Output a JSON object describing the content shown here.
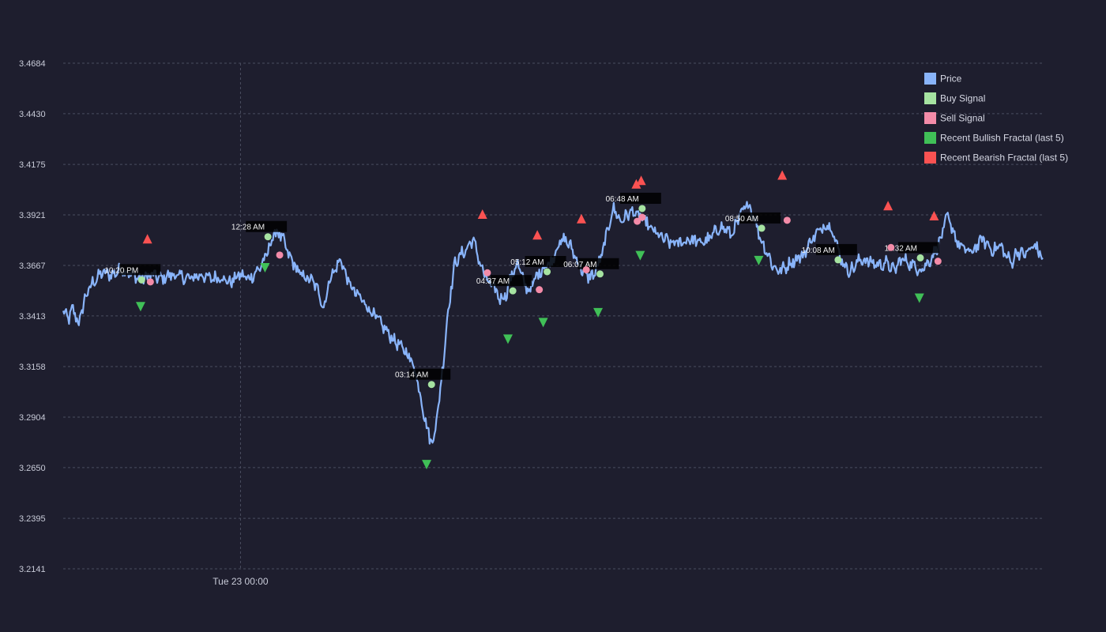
{
  "colors": {
    "background": "#1e1e2e",
    "price": "#89b4fa",
    "buy": "#a6e3a1",
    "sell": "#f38ba8",
    "bullish_fractal": "#40c057",
    "bearish_fractal": "#fa5252",
    "label_box": "#000000"
  },
  "chart_data": {
    "type": "line",
    "title": "",
    "xlabel": "",
    "ylabel": "",
    "ylim": [
      3.2141,
      3.4684
    ],
    "xlim": [
      0,
      1000
    ],
    "grid": true,
    "grid_style": "dashed",
    "legend_placement": "top-right",
    "y_ticks": [
      3.2141,
      3.2395,
      3.265,
      3.2904,
      3.3158,
      3.3413,
      3.3667,
      3.3921,
      3.4175,
      3.443,
      3.4684
    ],
    "y_tick_labels": [
      "3.2141",
      "3.2395",
      "3.2650",
      "3.2904",
      "3.3158",
      "3.3413",
      "3.3667",
      "3.3921",
      "3.4175",
      "3.4430",
      "3.4684"
    ],
    "x_ticks": [
      {
        "x": 181,
        "label": "Tue 23 00:00"
      }
    ],
    "price_anchors": [
      [
        0,
        3.343
      ],
      [
        6,
        3.34
      ],
      [
        10,
        3.345
      ],
      [
        16,
        3.337
      ],
      [
        22,
        3.35
      ],
      [
        30,
        3.358
      ],
      [
        40,
        3.363
      ],
      [
        50,
        3.362
      ],
      [
        60,
        3.365
      ],
      [
        70,
        3.362
      ],
      [
        80,
        3.36
      ],
      [
        90,
        3.362
      ],
      [
        100,
        3.36
      ],
      [
        110,
        3.362
      ],
      [
        120,
        3.361
      ],
      [
        130,
        3.36
      ],
      [
        140,
        3.362
      ],
      [
        150,
        3.36
      ],
      [
        160,
        3.361
      ],
      [
        170,
        3.358
      ],
      [
        180,
        3.362
      ],
      [
        190,
        3.36
      ],
      [
        200,
        3.365
      ],
      [
        208,
        3.372
      ],
      [
        213,
        3.38
      ],
      [
        218,
        3.384
      ],
      [
        224,
        3.38
      ],
      [
        230,
        3.372
      ],
      [
        236,
        3.367
      ],
      [
        242,
        3.362
      ],
      [
        250,
        3.36
      ],
      [
        256,
        3.358
      ],
      [
        262,
        3.352
      ],
      [
        266,
        3.345
      ],
      [
        272,
        3.36
      ],
      [
        278,
        3.365
      ],
      [
        284,
        3.37
      ],
      [
        288,
        3.362
      ],
      [
        296,
        3.354
      ],
      [
        304,
        3.35
      ],
      [
        312,
        3.345
      ],
      [
        320,
        3.34
      ],
      [
        328,
        3.335
      ],
      [
        336,
        3.33
      ],
      [
        344,
        3.326
      ],
      [
        352,
        3.322
      ],
      [
        358,
        3.316
      ],
      [
        362,
        3.308
      ],
      [
        366,
        3.298
      ],
      [
        370,
        3.288
      ],
      [
        374,
        3.28
      ],
      [
        377,
        3.278
      ],
      [
        380,
        3.285
      ],
      [
        384,
        3.3
      ],
      [
        388,
        3.318
      ],
      [
        392,
        3.34
      ],
      [
        396,
        3.355
      ],
      [
        400,
        3.368
      ],
      [
        406,
        3.372
      ],
      [
        412,
        3.375
      ],
      [
        418,
        3.38
      ],
      [
        422,
        3.374
      ],
      [
        428,
        3.364
      ],
      [
        434,
        3.358
      ],
      [
        440,
        3.355
      ],
      [
        446,
        3.35
      ],
      [
        452,
        3.352
      ],
      [
        458,
        3.362
      ],
      [
        464,
        3.368
      ],
      [
        470,
        3.358
      ],
      [
        476,
        3.354
      ],
      [
        482,
        3.36
      ],
      [
        490,
        3.366
      ],
      [
        498,
        3.368
      ],
      [
        504,
        3.376
      ],
      [
        512,
        3.38
      ],
      [
        518,
        3.376
      ],
      [
        524,
        3.37
      ],
      [
        530,
        3.364
      ],
      [
        536,
        3.361
      ],
      [
        542,
        3.362
      ],
      [
        550,
        3.372
      ],
      [
        556,
        3.385
      ],
      [
        562,
        3.396
      ],
      [
        568,
        3.389
      ],
      [
        574,
        3.391
      ],
      [
        580,
        3.394
      ],
      [
        586,
        3.392
      ],
      [
        592,
        3.39
      ],
      [
        600,
        3.385
      ],
      [
        610,
        3.381
      ],
      [
        620,
        3.378
      ],
      [
        630,
        3.378
      ],
      [
        640,
        3.38
      ],
      [
        650,
        3.378
      ],
      [
        660,
        3.38
      ],
      [
        670,
        3.386
      ],
      [
        676,
        3.385
      ],
      [
        682,
        3.382
      ],
      [
        688,
        3.388
      ],
      [
        694,
        3.394
      ],
      [
        700,
        3.398
      ],
      [
        706,
        3.39
      ],
      [
        712,
        3.38
      ],
      [
        718,
        3.374
      ],
      [
        724,
        3.367
      ],
      [
        730,
        3.364
      ],
      [
        736,
        3.365
      ],
      [
        742,
        3.368
      ],
      [
        748,
        3.37
      ],
      [
        756,
        3.372
      ],
      [
        764,
        3.38
      ],
      [
        772,
        3.384
      ],
      [
        780,
        3.388
      ],
      [
        786,
        3.384
      ],
      [
        790,
        3.376
      ],
      [
        796,
        3.368
      ],
      [
        802,
        3.364
      ],
      [
        808,
        3.366
      ],
      [
        814,
        3.37
      ],
      [
        820,
        3.369
      ],
      [
        826,
        3.368
      ],
      [
        832,
        3.367
      ],
      [
        840,
        3.368
      ],
      [
        848,
        3.364
      ],
      [
        856,
        3.37
      ],
      [
        864,
        3.368
      ],
      [
        872,
        3.365
      ],
      [
        880,
        3.366
      ],
      [
        888,
        3.372
      ],
      [
        896,
        3.38
      ],
      [
        902,
        3.391
      ],
      [
        908,
        3.385
      ],
      [
        914,
        3.377
      ],
      [
        920,
        3.375
      ],
      [
        926,
        3.373
      ],
      [
        932,
        3.376
      ],
      [
        938,
        3.38
      ],
      [
        944,
        3.377
      ],
      [
        950,
        3.374
      ],
      [
        956,
        3.377
      ],
      [
        962,
        3.372
      ],
      [
        968,
        3.368
      ],
      [
        974,
        3.374
      ],
      [
        980,
        3.372
      ],
      [
        986,
        3.374
      ],
      [
        992,
        3.377
      ],
      [
        1000,
        3.37
      ]
    ],
    "series": [
      {
        "name": "Price",
        "marker": "line"
      },
      {
        "name": "Buy Signal",
        "marker": "circle",
        "points": [
          {
            "x": 80,
            "y": 3.3594,
            "label": "10:20 PM"
          },
          {
            "x": 209,
            "y": 3.3811,
            "label": "12:28 AM"
          },
          {
            "x": 376,
            "y": 3.3068,
            "label": "03:14 AM"
          },
          {
            "x": 459,
            "y": 3.3539,
            "label": "04:37 AM"
          },
          {
            "x": 494,
            "y": 3.3635,
            "label": "05:12 AM"
          },
          {
            "x": 548,
            "y": 3.3624,
            "label": "06:07 AM"
          },
          {
            "x": 591,
            "y": 3.3953,
            "label": "06:48 AM"
          },
          {
            "x": 713,
            "y": 3.3854,
            "label": "08:50 AM"
          },
          {
            "x": 791,
            "y": 3.3695,
            "label": "10:08 AM"
          },
          {
            "x": 875,
            "y": 3.3705,
            "label": "11:32 AM"
          }
        ]
      },
      {
        "name": "Sell Signal",
        "marker": "circle",
        "points": [
          {
            "x": 89,
            "y": 3.3584
          },
          {
            "x": 221,
            "y": 3.3719
          },
          {
            "x": 433,
            "y": 3.363
          },
          {
            "x": 486,
            "y": 3.3545
          },
          {
            "x": 534,
            "y": 3.3645
          },
          {
            "x": 586,
            "y": 3.3889
          },
          {
            "x": 591,
            "y": 3.3909
          },
          {
            "x": 739,
            "y": 3.3894
          },
          {
            "x": 845,
            "y": 3.3757
          },
          {
            "x": 893,
            "y": 3.3688
          }
        ]
      },
      {
        "name": "Recent Bullish Fractal (last 5)",
        "marker": "triangle-down",
        "points": [
          {
            "x": 79,
            "y": 3.3459
          },
          {
            "x": 206,
            "y": 3.3655
          },
          {
            "x": 371,
            "y": 3.2665
          },
          {
            "x": 454,
            "y": 3.3296
          },
          {
            "x": 490,
            "y": 3.3379
          },
          {
            "x": 546,
            "y": 3.3429
          },
          {
            "x": 589,
            "y": 3.3716
          },
          {
            "x": 710,
            "y": 3.3691
          },
          {
            "x": 874,
            "y": 3.3502
          }
        ]
      },
      {
        "name": "Recent Bearish Fractal (last 5)",
        "marker": "triangle-up",
        "points": [
          {
            "x": 86,
            "y": 3.3801
          },
          {
            "x": 428,
            "y": 3.3925
          },
          {
            "x": 484,
            "y": 3.3821
          },
          {
            "x": 529,
            "y": 3.3902
          },
          {
            "x": 585,
            "y": 3.4077
          },
          {
            "x": 590,
            "y": 3.4095
          },
          {
            "x": 734,
            "y": 3.4122
          },
          {
            "x": 842,
            "y": 3.3968
          },
          {
            "x": 889,
            "y": 3.3917
          }
        ]
      }
    ]
  }
}
